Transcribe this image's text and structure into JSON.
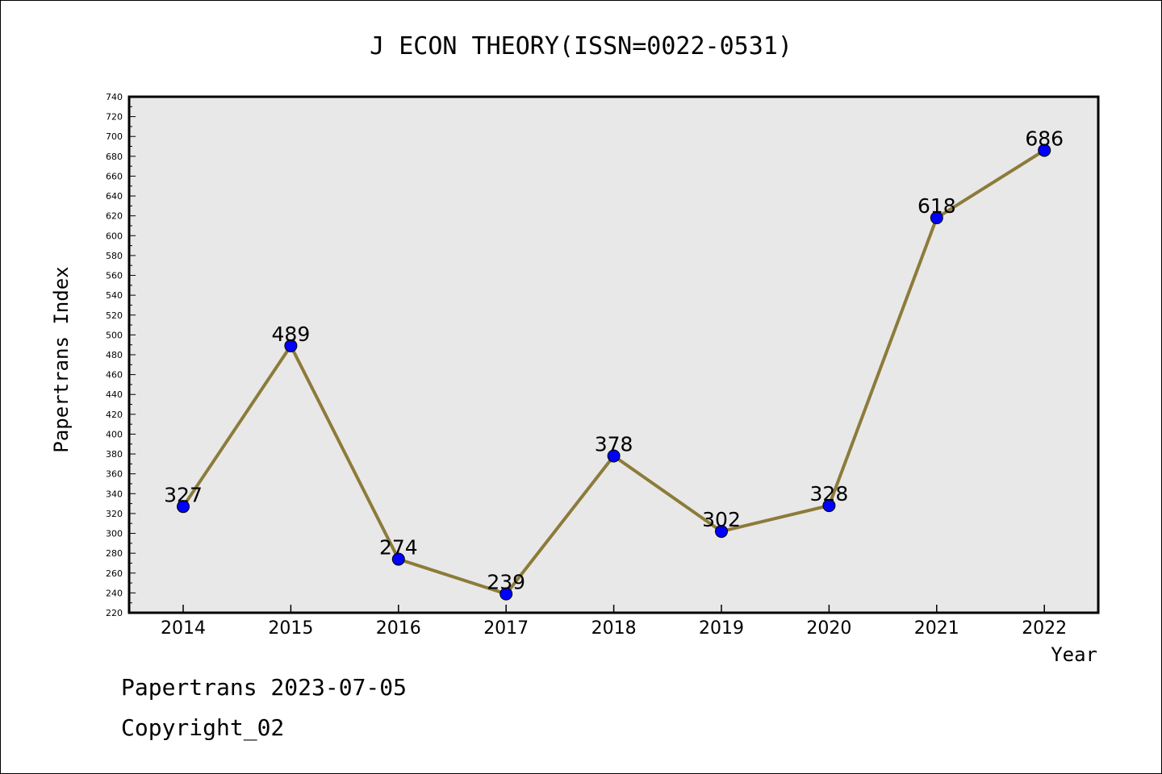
{
  "footer": {
    "line1": "Papertrans 2023-07-05",
    "line2": "Copyright_02"
  },
  "chart_data": {
    "type": "line",
    "title": "J ECON THEORY(ISSN=0022-0531)",
    "xlabel": "Year",
    "ylabel": "Papertrans Index",
    "categories": [
      "2014",
      "2015",
      "2016",
      "2017",
      "2018",
      "2019",
      "2020",
      "2021",
      "2022"
    ],
    "series": [
      {
        "values": [
          327,
          489,
          274,
          239,
          378,
          302,
          328,
          618,
          686
        ]
      }
    ],
    "data_labels": [
      "327",
      "489",
      "274",
      "239",
      "378",
      "302",
      "328",
      "618",
      "686"
    ],
    "ylim": [
      220,
      740
    ],
    "ytick_step": 20,
    "grid": false,
    "plot_background": "#e8e8e8",
    "line_color": "#8c7b3a",
    "marker_color": "#0000ff"
  }
}
